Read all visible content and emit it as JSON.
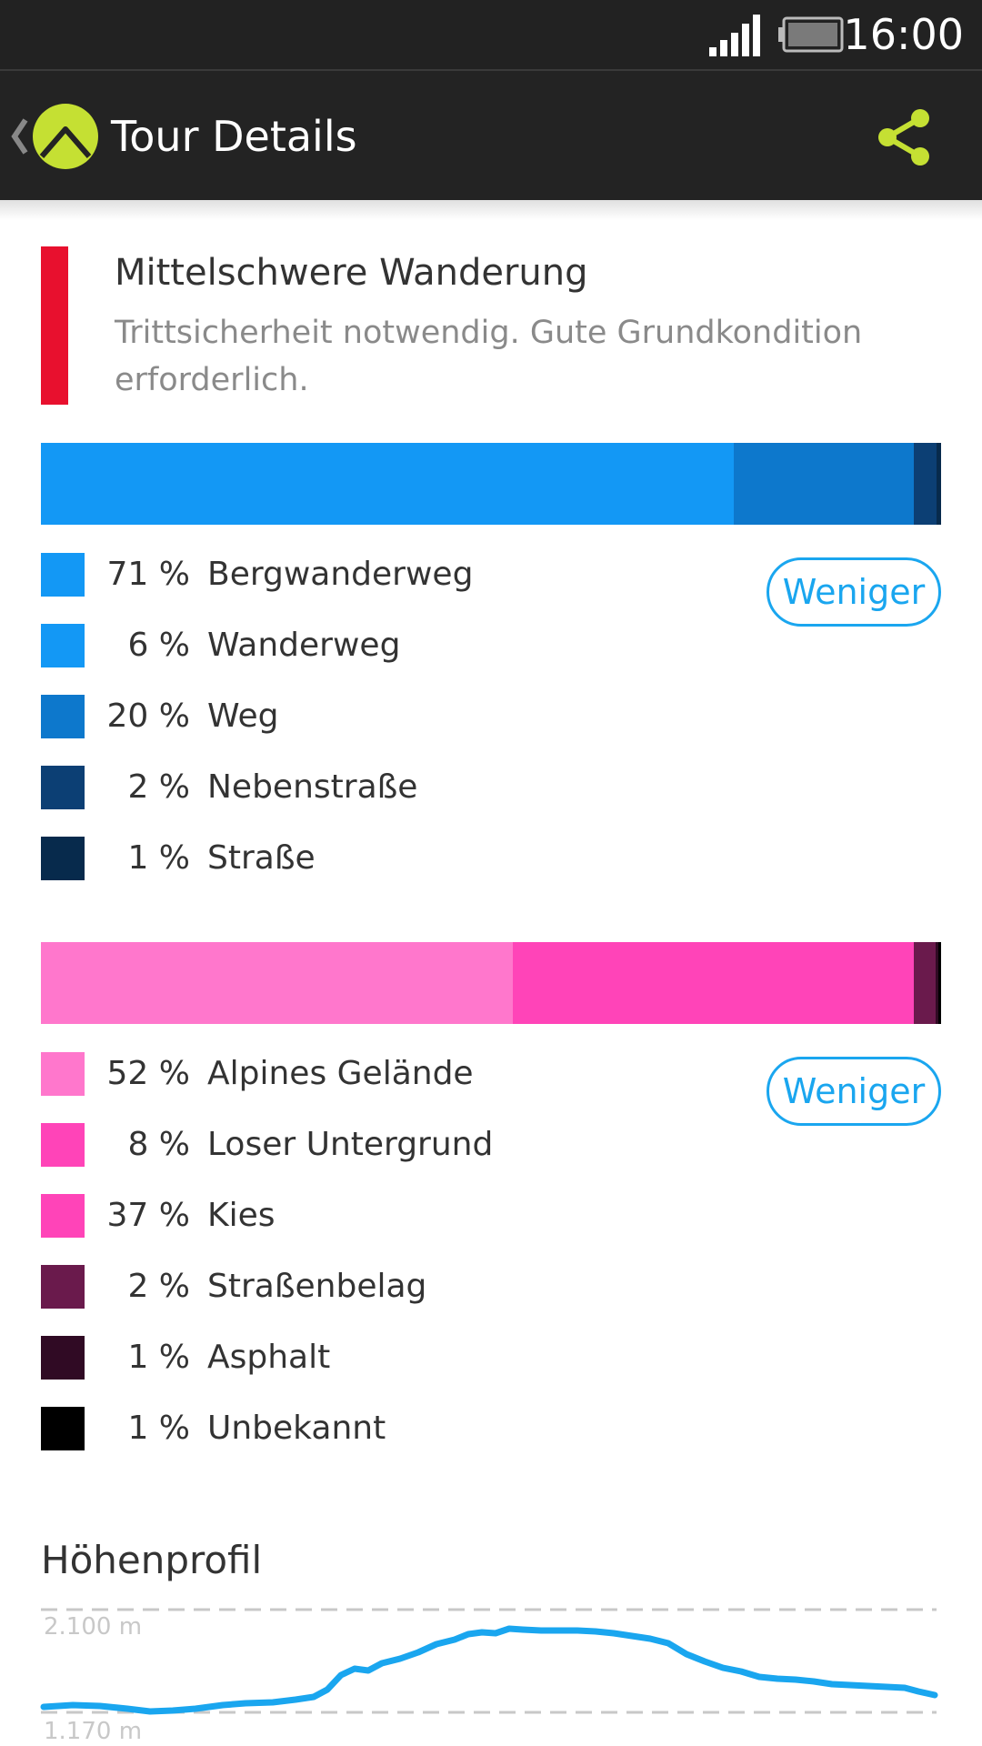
{
  "status_bar": {
    "time": "16:00",
    "icons": [
      "signal-icon",
      "battery-icon"
    ]
  },
  "app_bar": {
    "title": "Tour Details",
    "icons": [
      "back-chevron-icon",
      "app-logo-icon",
      "share-icon"
    ],
    "accent_color": "#c5e033"
  },
  "difficulty": {
    "title": "Mittelschwere Wanderung",
    "description": "Trittsicherheit notwendig. Gute Grundkondition erforderlich.",
    "color": "#e8102e"
  },
  "way_types": {
    "button_label": "Weniger",
    "bar": [
      {
        "percent": 77,
        "color": "#1398f5"
      },
      {
        "percent": 20,
        "color": "#0d78cc"
      },
      {
        "percent": 2.5,
        "color": "#0c3f74"
      },
      {
        "percent": 0.5,
        "color": "#072a4c"
      }
    ],
    "items": [
      {
        "pct": "71 %",
        "label": "Bergwanderweg",
        "color": "#1398f5"
      },
      {
        "pct": "6 %",
        "label": "Wanderweg",
        "color": "#1398f5"
      },
      {
        "pct": "20 %",
        "label": "Weg",
        "color": "#0d78cc"
      },
      {
        "pct": "2 %",
        "label": "Nebenstraße",
        "color": "#0c3f74"
      },
      {
        "pct": "1 %",
        "label": "Straße",
        "color": "#072a4c"
      }
    ]
  },
  "surfaces": {
    "button_label": "Weniger",
    "bar": [
      {
        "percent": 52.4,
        "color": "#ff77cc"
      },
      {
        "percent": 44.6,
        "color": "#ff44b8"
      },
      {
        "percent": 2.4,
        "color": "#6a1a4c"
      },
      {
        "percent": 0.3,
        "color": "#300a24"
      },
      {
        "percent": 0.3,
        "color": "#000000"
      }
    ],
    "items": [
      {
        "pct": "52 %",
        "label": "Alpines Gelände",
        "color": "#ff77cc"
      },
      {
        "pct": "8 %",
        "label": "Loser Untergrund",
        "color": "#ff44b8"
      },
      {
        "pct": "37 %",
        "label": "Kies",
        "color": "#ff44b8"
      },
      {
        "pct": "2 %",
        "label": "Straßenbelag",
        "color": "#6a1a4c"
      },
      {
        "pct": "1 %",
        "label": "Asphalt",
        "color": "#300a24"
      },
      {
        "pct": "1 %",
        "label": "Unbekannt",
        "color": "#000000"
      }
    ]
  },
  "elevation_profile": {
    "title": "Höhenprofil",
    "max_label": "2.100 m",
    "min_label": "1.170 m",
    "line_color": "#1aa6ef"
  }
}
